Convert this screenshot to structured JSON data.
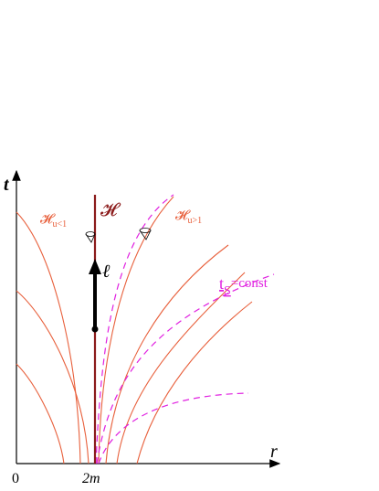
{
  "axes": {
    "y_label": "t",
    "x_label": "r",
    "x_ticks": [
      "0",
      "2m"
    ]
  },
  "labels": {
    "horizon": "𝓗",
    "inner": {
      "base": "𝓗",
      "sub": "u<1"
    },
    "outer": {
      "base": "𝓗",
      "sub": "u>1"
    },
    "worldline": "ℓ",
    "time_slice": {
      "base": "t",
      "sub": "S",
      "rest": "=const"
    }
  }
}
